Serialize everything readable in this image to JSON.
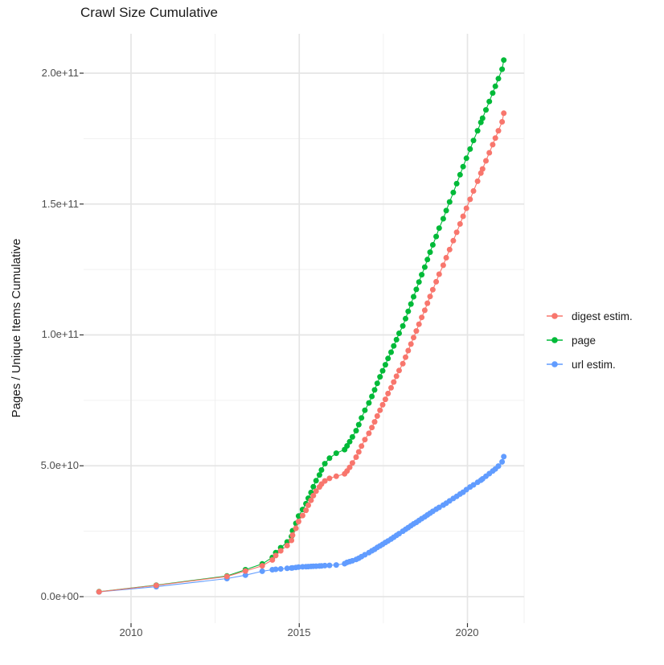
{
  "title": "Crawl Size Cumulative",
  "axes": {
    "y_label": "Pages / Unique Items Cumulative",
    "y_tick_labels": [
      "0.0e+00",
      "5.0e+10",
      "1.0e+11",
      "1.5e+11",
      "2.0e+11"
    ],
    "x_tick_labels": [
      "2010",
      "2015",
      "2020"
    ]
  },
  "legend": {
    "items": [
      {
        "label": "digest estim.",
        "color": "#F8766D"
      },
      {
        "label": "page",
        "color": "#00BA38"
      },
      {
        "label": "url estim.",
        "color": "#619CFF"
      }
    ]
  },
  "chart_data": {
    "type": "line",
    "title": "Crawl Size Cumulative",
    "xlabel": "",
    "ylabel": "Pages / Unique Items Cumulative",
    "value_unit": "1e9",
    "xlim": [
      2008.6,
      2021.7
    ],
    "ylim_e9": [
      -10,
      215
    ],
    "grid": true,
    "legend_position": "right",
    "x_major_ticks": [
      2010,
      2015,
      2020
    ],
    "x_minor_ticks": [
      2012.5,
      2017.5
    ],
    "y_major_ticks_e9": [
      0,
      50,
      100,
      150,
      200
    ],
    "y_minor_ticks_e9": [
      25,
      75,
      125,
      175
    ],
    "y_tick_labels": [
      "0.0e+00",
      "5.0e+10",
      "1.0e+11",
      "1.5e+11",
      "2.0e+11"
    ],
    "x_tick_labels": [
      "2010",
      "2015",
      "2020"
    ],
    "x": [
      2009.05,
      2010.75,
      2012.85,
      2013.4,
      2013.9,
      2014.2,
      2014.3,
      2014.45,
      2014.64,
      2014.77,
      2014.8,
      2014.9,
      2014.98,
      2015.1,
      2015.2,
      2015.27,
      2015.35,
      2015.42,
      2015.5,
      2015.6,
      2015.66,
      2015.76,
      2015.9,
      2016.1,
      2016.35,
      2016.42,
      2016.5,
      2016.58,
      2016.69,
      2016.77,
      2016.85,
      2016.95,
      2017.07,
      2017.16,
      2017.24,
      2017.32,
      2017.4,
      2017.48,
      2017.56,
      2017.64,
      2017.73,
      2017.81,
      2017.89,
      2017.97,
      2018.08,
      2018.16,
      2018.24,
      2018.32,
      2018.4,
      2018.48,
      2018.56,
      2018.64,
      2018.73,
      2018.81,
      2018.89,
      2018.97,
      2019.07,
      2019.16,
      2019.28,
      2019.37,
      2019.47,
      2019.58,
      2019.68,
      2019.78,
      2019.87,
      2019.97,
      2020.08,
      2020.18,
      2020.3,
      2020.4,
      2020.45,
      2020.55,
      2020.65,
      2020.75,
      2020.83,
      2020.92,
      2021.03,
      2021.08
    ],
    "series": [
      {
        "name": "digest estim.",
        "color": "#F8766D",
        "values_e9": [
          1.85,
          4.3,
          7.7,
          9.8,
          11.8,
          14.0,
          15.7,
          17.5,
          19.5,
          21.5,
          23.5,
          26.1,
          28.7,
          31.0,
          33.0,
          34.9,
          36.8,
          38.6,
          40.3,
          41.9,
          43.0,
          44.2,
          45.2,
          46.0,
          46.9,
          48.0,
          49.4,
          51.1,
          53.3,
          55.3,
          57.5,
          60.0,
          62.4,
          64.6,
          66.8,
          69.0,
          71.2,
          73.3,
          75.4,
          77.6,
          79.8,
          82.0,
          84.2,
          86.4,
          89.0,
          91.5,
          94.0,
          96.5,
          99.0,
          101.5,
          104.1,
          106.7,
          109.4,
          112.1,
          114.7,
          117.3,
          120.3,
          123.2,
          126.6,
          129.5,
          132.6,
          136.0,
          139.2,
          142.4,
          145.3,
          148.4,
          151.8,
          155.0,
          158.7,
          161.8,
          163.4,
          166.5,
          169.6,
          172.7,
          175.2,
          178.0,
          181.4,
          184.7
        ]
      },
      {
        "name": "page",
        "color": "#00BA38",
        "values_e9": [
          1.9,
          4.4,
          7.9,
          10.3,
          12.5,
          15.0,
          16.8,
          18.7,
          20.9,
          23.0,
          25.2,
          28.0,
          30.8,
          33.3,
          35.5,
          37.6,
          39.8,
          42.0,
          44.3,
          46.5,
          48.4,
          50.8,
          52.9,
          54.8,
          56.2,
          57.6,
          59.2,
          61.0,
          63.4,
          65.7,
          68.3,
          71.2,
          74.0,
          76.5,
          79.0,
          81.5,
          84.0,
          86.3,
          88.6,
          91.0,
          93.4,
          95.8,
          98.2,
          100.6,
          103.4,
          106.2,
          109.0,
          111.8,
          114.6,
          117.4,
          120.2,
          123.0,
          125.9,
          128.8,
          131.6,
          134.4,
          137.6,
          140.8,
          144.4,
          147.5,
          150.8,
          154.4,
          157.8,
          161.2,
          164.3,
          167.5,
          171.0,
          174.3,
          178.0,
          181.2,
          182.8,
          186.0,
          189.2,
          192.4,
          195.0,
          197.9,
          201.5,
          205.0
        ]
      },
      {
        "name": "url estim.",
        "color": "#619CFF",
        "values_e9": [
          1.8,
          3.8,
          6.9,
          8.2,
          9.7,
          10.3,
          10.45,
          10.6,
          10.8,
          10.95,
          11.0,
          11.15,
          11.3,
          11.4,
          11.45,
          11.5,
          11.55,
          11.6,
          11.65,
          11.7,
          11.75,
          11.85,
          11.95,
          12.1,
          12.6,
          13.1,
          13.4,
          13.7,
          14.2,
          14.7,
          15.3,
          16.0,
          16.8,
          17.5,
          18.1,
          18.8,
          19.4,
          20.0,
          20.7,
          21.3,
          22.0,
          22.7,
          23.4,
          24.1,
          25.0,
          25.7,
          26.4,
          27.1,
          27.8,
          28.4,
          29.1,
          29.8,
          30.5,
          31.2,
          31.9,
          32.6,
          33.4,
          34.1,
          35.0,
          35.7,
          36.6,
          37.5,
          38.3,
          39.2,
          39.9,
          40.9,
          41.9,
          42.7,
          43.7,
          44.5,
          45.0,
          46.0,
          47.0,
          48.0,
          48.8,
          49.9,
          51.5,
          53.5
        ]
      }
    ],
    "draw_order": [
      2,
      1,
      0
    ]
  }
}
